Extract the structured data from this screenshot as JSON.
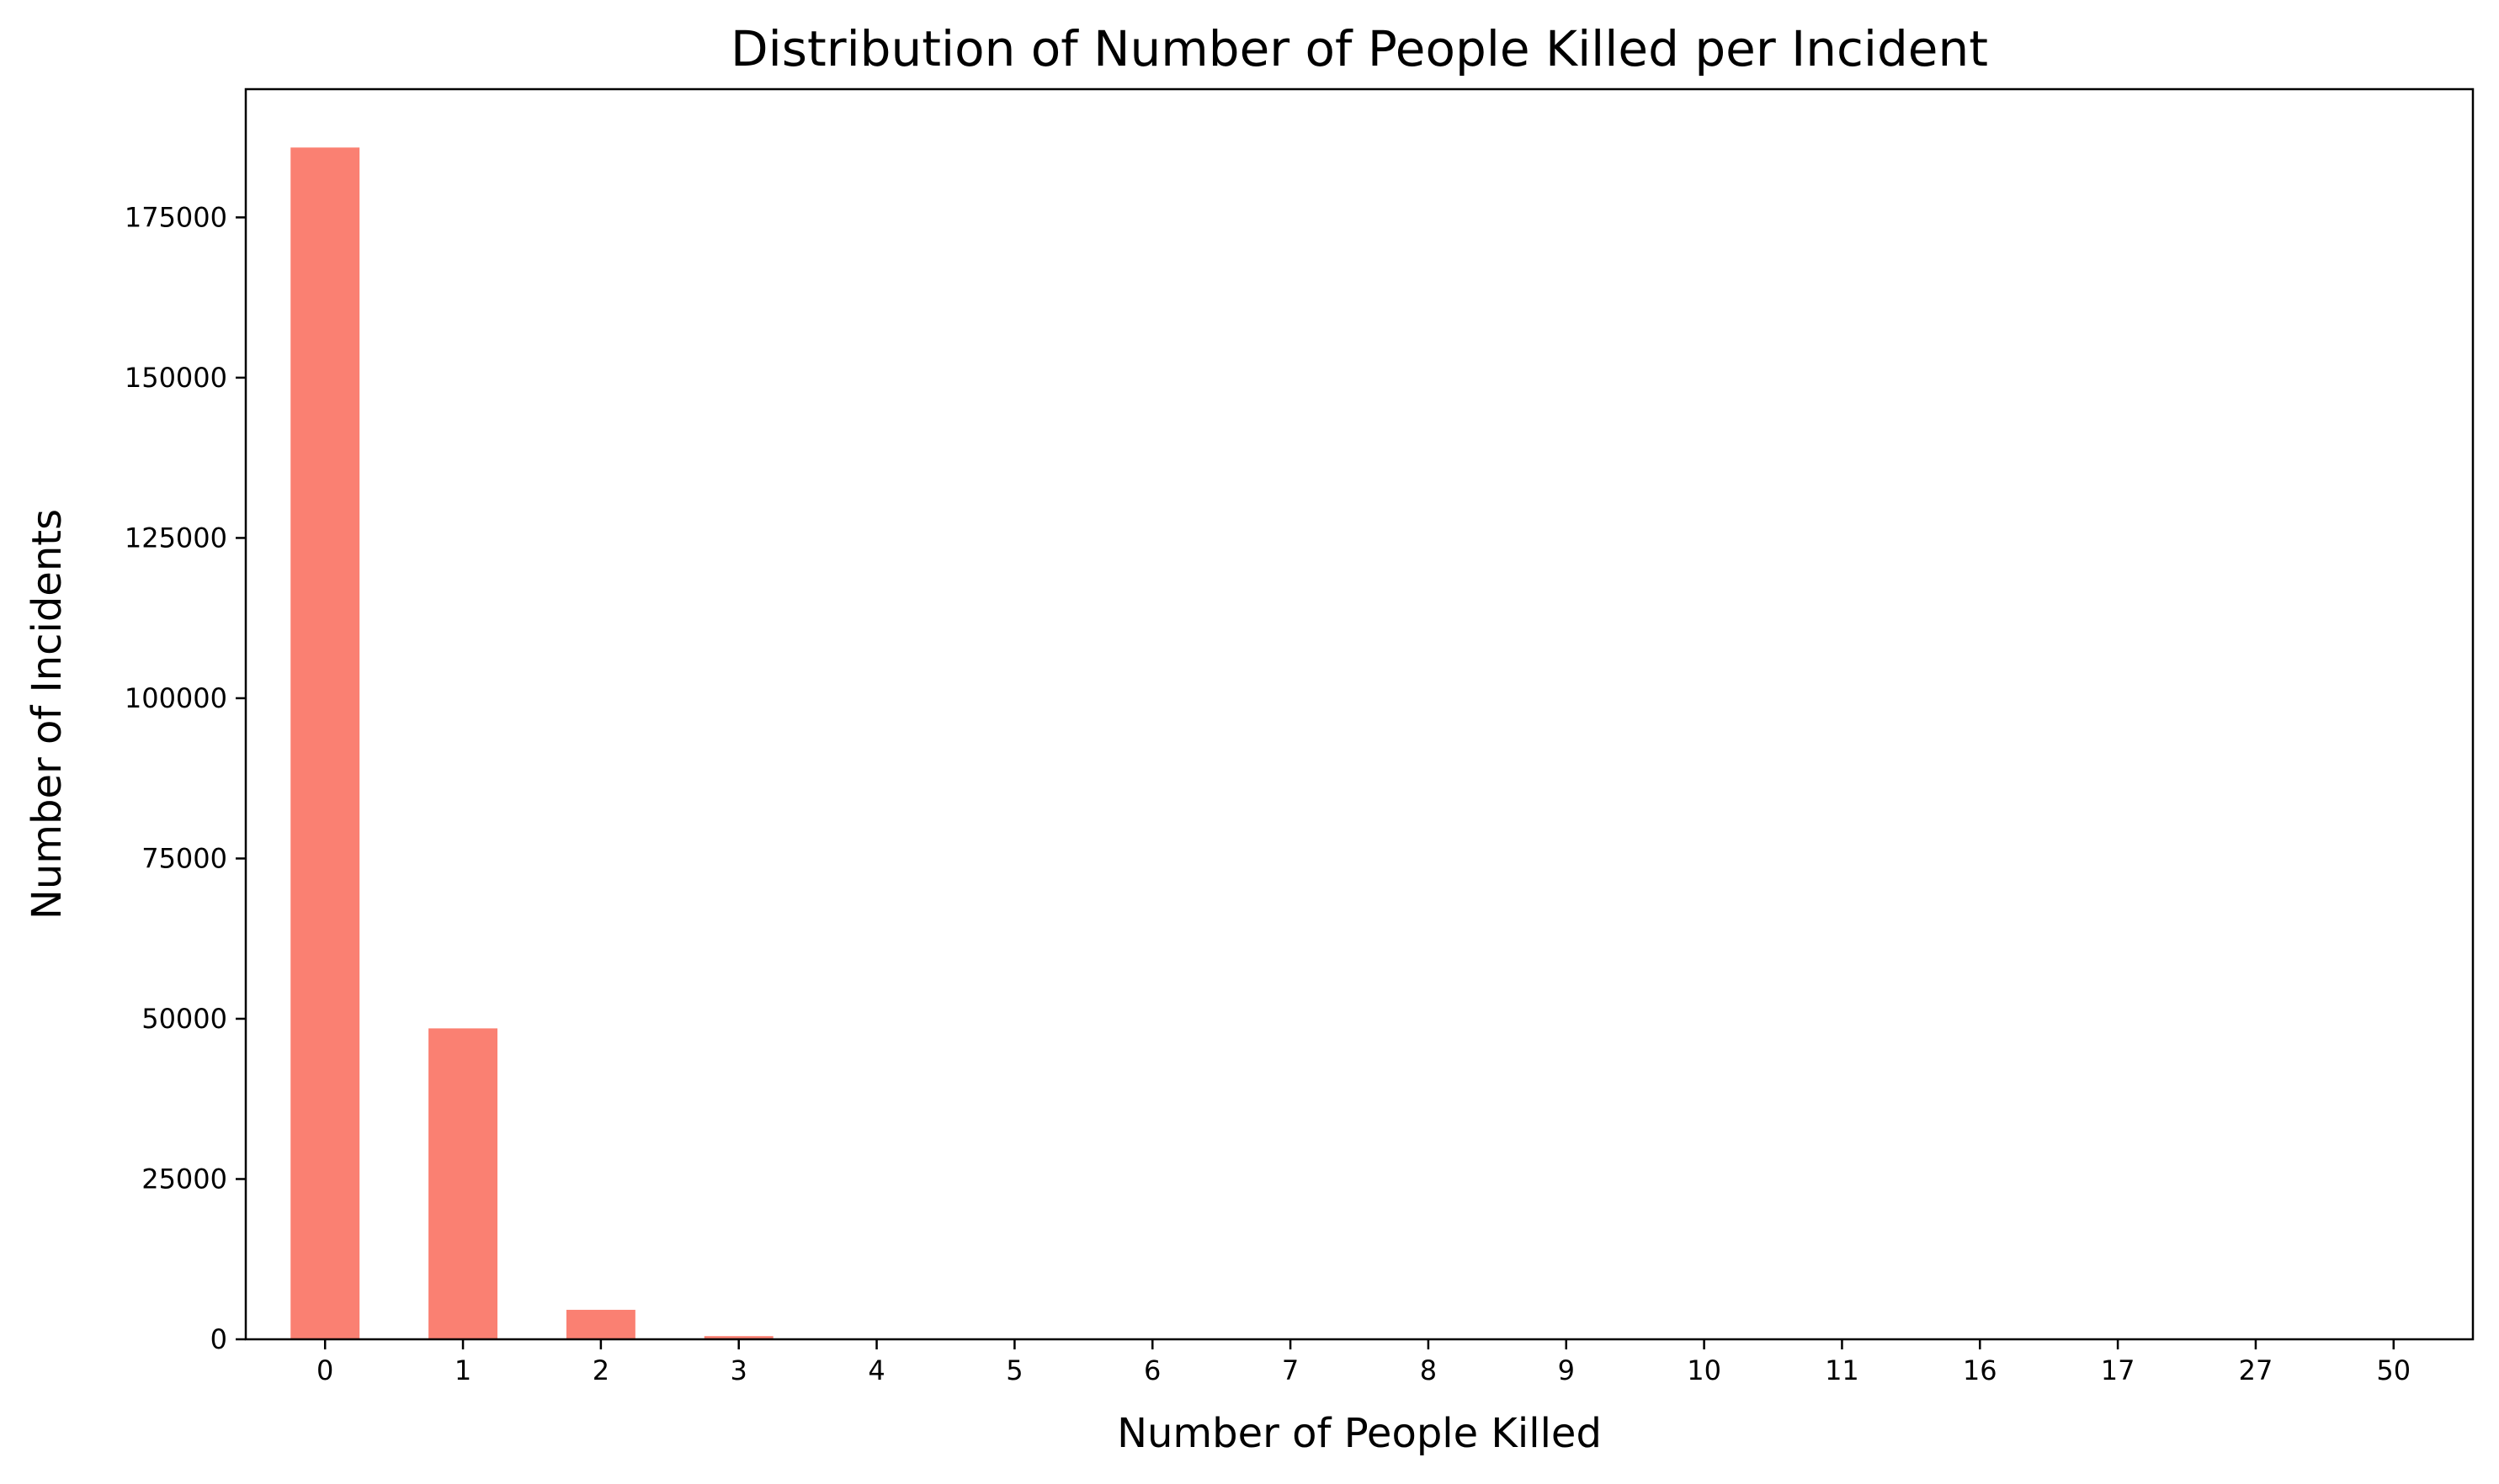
{
  "chart_data": {
    "type": "bar",
    "title": "Distribution of Number of People Killed per Incident",
    "xlabel": "Number of People Killed",
    "ylabel": "Number of Incidents",
    "categories": [
      "0",
      "1",
      "2",
      "3",
      "4",
      "5",
      "6",
      "7",
      "8",
      "9",
      "10",
      "11",
      "16",
      "17",
      "27",
      "50"
    ],
    "values": [
      185900,
      48500,
      4600,
      500,
      60,
      20,
      10,
      5,
      3,
      2,
      2,
      1,
      1,
      1,
      1,
      1
    ],
    "ylim": [
      0,
      195000
    ],
    "yticks": [
      0,
      25000,
      50000,
      75000,
      100000,
      125000,
      150000,
      175000
    ],
    "grid": false,
    "bar_color": "#fa8072",
    "legend": "none"
  }
}
